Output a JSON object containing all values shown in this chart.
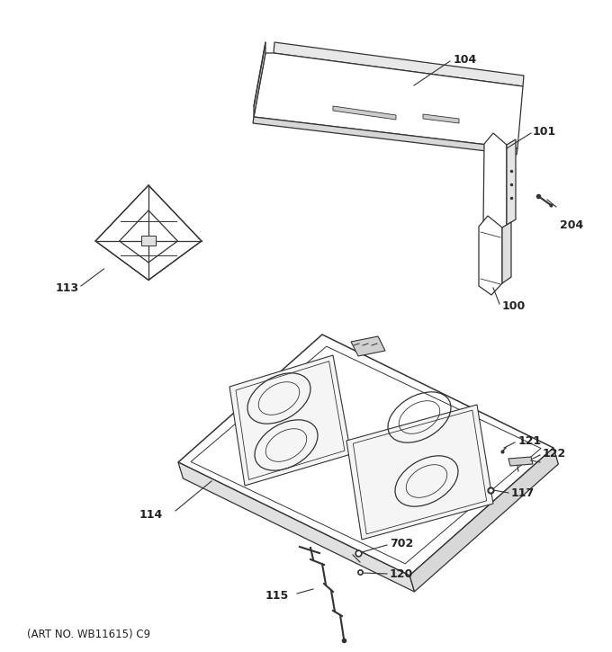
{
  "footer": "(ART NO. WB11615) C9",
  "bg_color": "#ffffff",
  "line_color": "#333333",
  "lw": 0.9
}
